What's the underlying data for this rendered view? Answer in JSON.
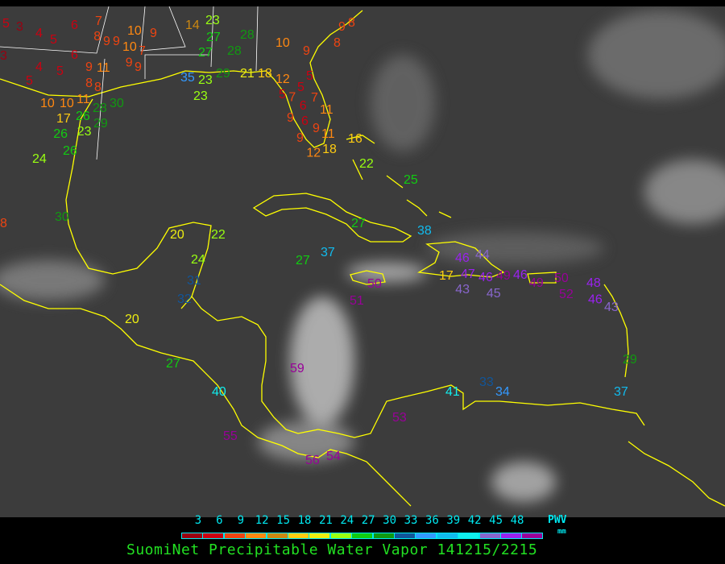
{
  "product": {
    "title": "SuomiNet Precipitable Water Vapor 141215/2215",
    "units_label": "PWV",
    "units": "mm"
  },
  "colors": {
    "background": "#3c3c3c",
    "coastline": "#ffff00",
    "legend_text": "#00e8f0",
    "title_text": "#22e022"
  },
  "scale": {
    "ticks": [
      "3",
      "6",
      "9",
      "12",
      "15",
      "18",
      "21",
      "24",
      "27",
      "30",
      "33",
      "36",
      "39",
      "42",
      "45",
      "48"
    ],
    "bins": [
      {
        "max": 3,
        "color": "#990011"
      },
      {
        "max": 6,
        "color": "#cc0011"
      },
      {
        "max": 9,
        "color": "#ee4411"
      },
      {
        "max": 12,
        "color": "#ff8811"
      },
      {
        "max": 15,
        "color": "#cc8811"
      },
      {
        "max": 18,
        "color": "#ffcc11"
      },
      {
        "max": 21,
        "color": "#eeee11"
      },
      {
        "max": 24,
        "color": "#99ff11"
      },
      {
        "max": 27,
        "color": "#11cc11"
      },
      {
        "max": 30,
        "color": "#119911"
      },
      {
        "max": 33,
        "color": "#115599"
      },
      {
        "max": 36,
        "color": "#3399ff"
      },
      {
        "max": 39,
        "color": "#11bbee"
      },
      {
        "max": 42,
        "color": "#11eeee"
      },
      {
        "max": 45,
        "color": "#8866cc"
      },
      {
        "max": 48,
        "color": "#9922ee"
      },
      {
        "max": 99,
        "color": "#990099"
      }
    ]
  },
  "stations": [
    5,
    3,
    4,
    5,
    6,
    7,
    8,
    9,
    9,
    10,
    9,
    10,
    9,
    7,
    6,
    3,
    4,
    5,
    9,
    11,
    9,
    5,
    8,
    8,
    10,
    10,
    11,
    17,
    26,
    28,
    30,
    26,
    23,
    29,
    24,
    26,
    30,
    8,
    14,
    23,
    27,
    28,
    27,
    28,
    35,
    23,
    29,
    21,
    18,
    23,
    10,
    9,
    8,
    9,
    8,
    12,
    5,
    5,
    7,
    5,
    6,
    7,
    11,
    9,
    6,
    9,
    11,
    9,
    12,
    16,
    18,
    22,
    25,
    27,
    38,
    37,
    27,
    20,
    22,
    24,
    31,
    32,
    20,
    27,
    40,
    59,
    50,
    51,
    46,
    44,
    47,
    43,
    46,
    49,
    45,
    46,
    49,
    50,
    52,
    48,
    46,
    43,
    29,
    37,
    41,
    33,
    34,
    53,
    55,
    56,
    54,
    17
  ]
}
